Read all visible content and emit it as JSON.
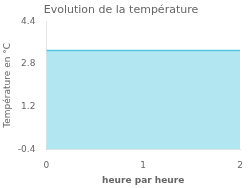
{
  "chart_data": {
    "type": "area",
    "title": "Evolution de la température",
    "xlabel": "heure par heure",
    "ylabel": "Température en °C",
    "x": [
      0,
      2
    ],
    "values": [
      3.3,
      3.3
    ],
    "color": "#55c8e0",
    "xlim": [
      0,
      2
    ],
    "ylim": [
      -0.4,
      4.4
    ],
    "xticks": [
      0,
      1,
      2
    ],
    "yticks": [
      -0.4,
      1.2,
      2.8,
      4.4
    ],
    "grid": false
  }
}
